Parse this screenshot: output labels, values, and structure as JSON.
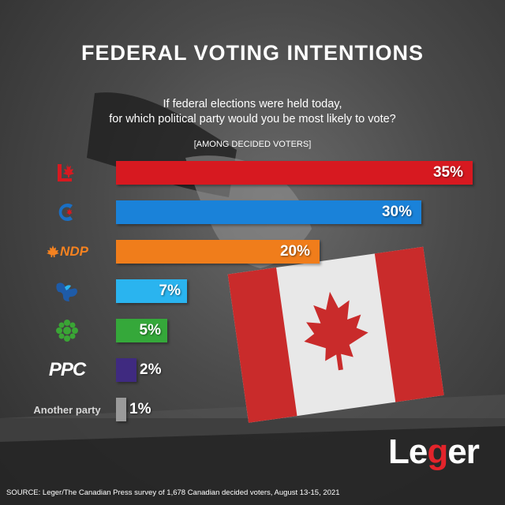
{
  "title": "FEDERAL VOTING INTENTIONS",
  "question_line1": "If federal elections were held today,",
  "question_line2": "for which political party would you be most likely to vote?",
  "subnote": "[AMONG DECIDED VOTERS]",
  "source": "SOURCE: Leger/The Canadian Press survey of 1,678 Canadian decided voters, August 13-15, 2021",
  "brand": {
    "part1": "Le",
    "part2": "g",
    "part3": "er"
  },
  "chart_data": {
    "type": "bar",
    "orientation": "horizontal",
    "unit": "%",
    "xlim": [
      0,
      35
    ],
    "categories": [
      "Liberal",
      "Conservative",
      "NDP",
      "Bloc Québécois",
      "Green",
      "PPC",
      "Another party"
    ],
    "values": [
      35,
      30,
      20,
      7,
      5,
      2,
      1
    ],
    "value_labels": [
      "35%",
      "30%",
      "20%",
      "7%",
      "5%",
      "2%",
      "1%"
    ],
    "colors": [
      "#d71920",
      "#1a82d9",
      "#f07d1b",
      "#2ab4ef",
      "#35a83a",
      "#3f2a80",
      "#9a9a9a"
    ],
    "logo_icons": [
      "liberal-l-maple-icon",
      "conservative-c-icon",
      "ndp-maple-icon",
      "bloc-fleur-icon",
      "green-flower-icon",
      "ppc-text-logo",
      "text-label"
    ],
    "logo_text": {
      "ndp": "NDP",
      "ppc": "PPC",
      "another": "Another party"
    }
  }
}
